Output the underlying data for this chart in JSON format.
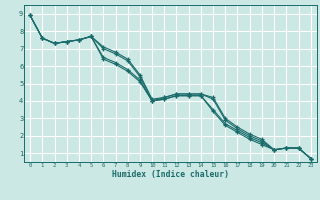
{
  "xlabel": "Humidex (Indice chaleur)",
  "bg_color": "#cce8e4",
  "grid_color": "#ffffff",
  "line_color": "#1a6b6b",
  "xlim": [
    -0.5,
    23.5
  ],
  "ylim": [
    0.5,
    9.5
  ],
  "xticks": [
    0,
    1,
    2,
    3,
    4,
    5,
    6,
    7,
    8,
    9,
    10,
    11,
    12,
    13,
    14,
    15,
    16,
    17,
    18,
    19,
    20,
    21,
    22,
    23
  ],
  "yticks": [
    1,
    2,
    3,
    4,
    5,
    6,
    7,
    8,
    9
  ],
  "series": [
    {
      "x": [
        0,
        1,
        2,
        3,
        4,
        5,
        6,
        7,
        8,
        9,
        10,
        11,
        12,
        13,
        14,
        15,
        16,
        17,
        18,
        19,
        20,
        21,
        22,
        23
      ],
      "y": [
        8.9,
        7.6,
        7.3,
        7.4,
        7.5,
        7.7,
        7.1,
        6.8,
        6.4,
        5.5,
        4.1,
        4.2,
        4.4,
        4.4,
        4.4,
        4.2,
        3.0,
        2.5,
        2.1,
        1.8,
        1.2,
        1.3,
        1.3,
        0.7
      ]
    },
    {
      "x": [
        0,
        1,
        2,
        3,
        4,
        5,
        6,
        7,
        8,
        9,
        10,
        11,
        12,
        13,
        14,
        15,
        16,
        17,
        18,
        19,
        20,
        21,
        22,
        23
      ],
      "y": [
        8.9,
        7.6,
        7.3,
        7.4,
        7.5,
        7.7,
        6.5,
        6.2,
        5.8,
        5.2,
        4.0,
        4.1,
        4.3,
        4.3,
        4.3,
        3.5,
        2.7,
        2.3,
        1.9,
        1.6,
        1.2,
        1.3,
        1.3,
        0.7
      ]
    },
    {
      "x": [
        0,
        1,
        2,
        3,
        4,
        5,
        6,
        7,
        8,
        9,
        10,
        11,
        12,
        13,
        14,
        15,
        16,
        17,
        18,
        19,
        20,
        21,
        22,
        23
      ],
      "y": [
        8.9,
        7.6,
        7.3,
        7.4,
        7.5,
        7.7,
        6.4,
        6.1,
        5.7,
        5.1,
        4.0,
        4.1,
        4.3,
        4.3,
        4.3,
        3.4,
        2.6,
        2.2,
        1.8,
        1.5,
        1.2,
        1.3,
        1.3,
        0.7
      ]
    },
    {
      "x": [
        0,
        1,
        2,
        3,
        4,
        5,
        6,
        7,
        8,
        9,
        10,
        11,
        12,
        13,
        14,
        15,
        16,
        17,
        18,
        19,
        20,
        21,
        22,
        23
      ],
      "y": [
        8.9,
        7.6,
        7.3,
        7.4,
        7.5,
        7.7,
        7.0,
        6.7,
        6.3,
        5.4,
        4.0,
        4.2,
        4.4,
        4.4,
        4.4,
        4.1,
        2.9,
        2.4,
        2.0,
        1.7,
        1.2,
        1.3,
        1.3,
        0.7
      ]
    }
  ]
}
